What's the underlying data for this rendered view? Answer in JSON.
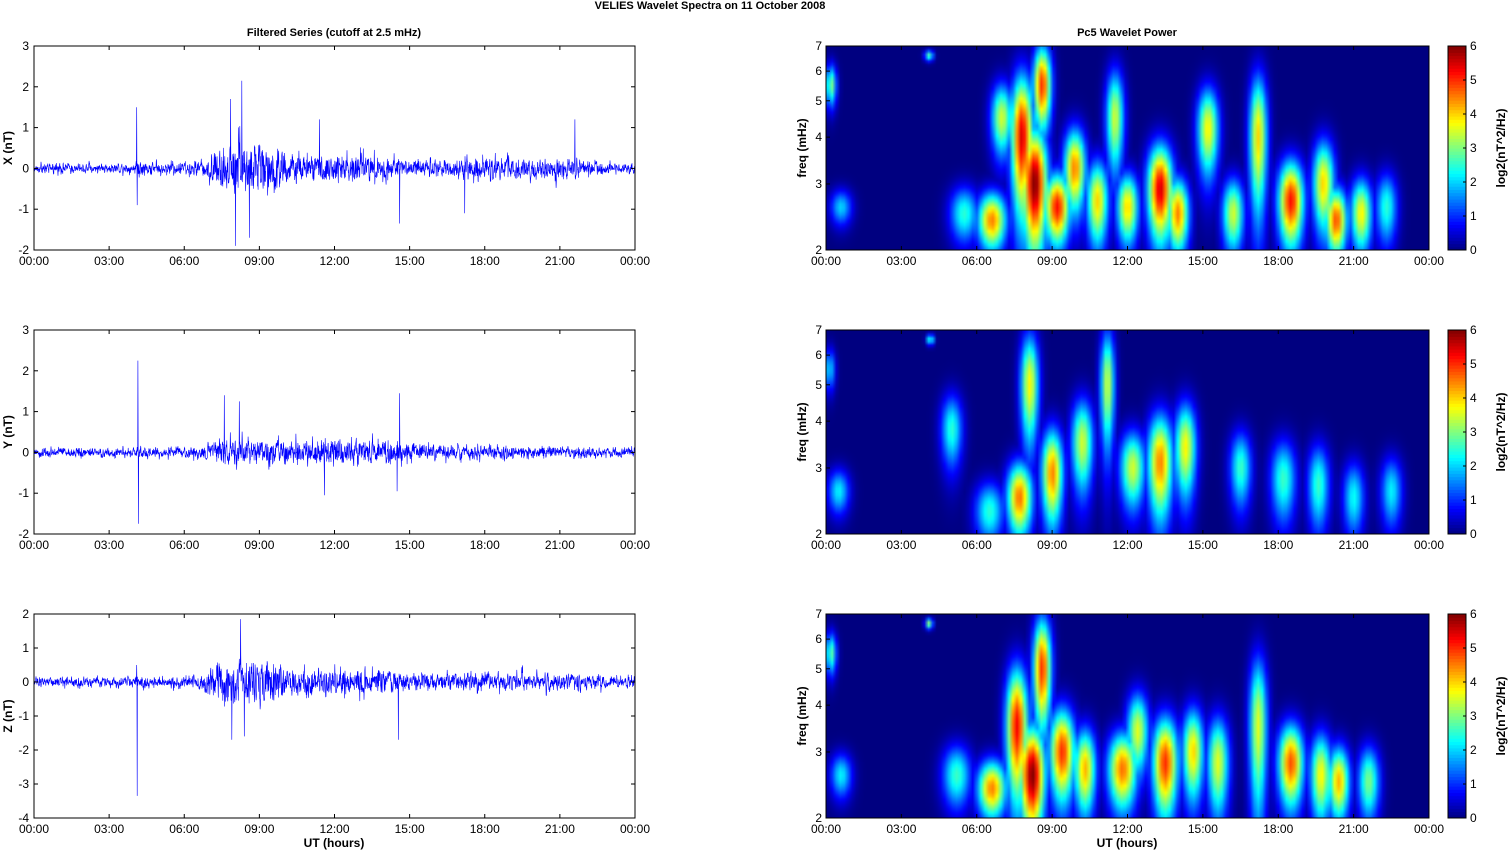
{
  "figure_title": "VELIES Wavelet Spectra on 11 October   2008",
  "left_title": "Filtered Series (cutoff at 2.5 mHz)",
  "right_title": "Pc5 Wavelet Power",
  "xlabel": "UT (hours)",
  "freq_label": "freq (mHz)",
  "colorbar_label": "log2(nT^2/Hz)",
  "colormap": "jet",
  "trace_color": "#0000ff",
  "chart_data": [
    {
      "type": "line",
      "ylabel": "X (nT)",
      "ylim": [
        -2,
        3
      ],
      "yticks": [
        -2,
        -1,
        0,
        1,
        2,
        3
      ],
      "xlim": [
        0,
        24
      ],
      "xticks": [
        "00:00",
        "03:00",
        "06:00",
        "09:00",
        "12:00",
        "15:00",
        "18:00",
        "21:00",
        "00:00"
      ],
      "noise_baseline": 0.08,
      "activity_envelope": [
        {
          "t": 0,
          "a": 0.12
        },
        {
          "t": 4,
          "a": 0.12
        },
        {
          "t": 4.1,
          "a": 0.25
        },
        {
          "t": 4.6,
          "a": 0.15
        },
        {
          "t": 6.6,
          "a": 0.2
        },
        {
          "t": 7,
          "a": 0.45
        },
        {
          "t": 8,
          "a": 0.9
        },
        {
          "t": 9,
          "a": 0.85
        },
        {
          "t": 10,
          "a": 0.5
        },
        {
          "t": 11,
          "a": 0.4
        },
        {
          "t": 12,
          "a": 0.45
        },
        {
          "t": 13,
          "a": 0.4
        },
        {
          "t": 14,
          "a": 0.35
        },
        {
          "t": 15,
          "a": 0.25
        },
        {
          "t": 17,
          "a": 0.25
        },
        {
          "t": 18,
          "a": 0.35
        },
        {
          "t": 19,
          "a": 0.3
        },
        {
          "t": 20,
          "a": 0.3
        },
        {
          "t": 21,
          "a": 0.35
        },
        {
          "t": 22,
          "a": 0.25
        },
        {
          "t": 23,
          "a": 0.15
        },
        {
          "t": 24,
          "a": 0.12
        }
      ],
      "spikes": [
        {
          "t": 4.1,
          "v": 1.5
        },
        {
          "t": 4.12,
          "v": -0.9
        },
        {
          "t": 8.3,
          "v": 2.15
        },
        {
          "t": 8.05,
          "v": -1.9
        },
        {
          "t": 7.85,
          "v": 1.7
        },
        {
          "t": 8.6,
          "v": -1.7
        },
        {
          "t": 11.4,
          "v": 1.2
        },
        {
          "t": 14.6,
          "v": -1.35
        },
        {
          "t": 21.6,
          "v": 1.2
        },
        {
          "t": 17.2,
          "v": -1.1
        }
      ]
    },
    {
      "type": "line",
      "ylabel": "Y (nT)",
      "ylim": [
        -2,
        3
      ],
      "yticks": [
        -2,
        -1,
        0,
        1,
        2,
        3
      ],
      "xlim": [
        0,
        24
      ],
      "xticks": [
        "00:00",
        "03:00",
        "06:00",
        "09:00",
        "12:00",
        "15:00",
        "18:00",
        "21:00",
        "00:00"
      ],
      "noise_baseline": 0.08,
      "activity_envelope": [
        {
          "t": 0,
          "a": 0.12
        },
        {
          "t": 6,
          "a": 0.13
        },
        {
          "t": 7,
          "a": 0.25
        },
        {
          "t": 8,
          "a": 0.45
        },
        {
          "t": 9,
          "a": 0.4
        },
        {
          "t": 10,
          "a": 0.35
        },
        {
          "t": 11,
          "a": 0.35
        },
        {
          "t": 12,
          "a": 0.45
        },
        {
          "t": 13,
          "a": 0.35
        },
        {
          "t": 14,
          "a": 0.35
        },
        {
          "t": 15,
          "a": 0.25
        },
        {
          "t": 17,
          "a": 0.2
        },
        {
          "t": 18,
          "a": 0.2
        },
        {
          "t": 21,
          "a": 0.15
        },
        {
          "t": 24,
          "a": 0.12
        }
      ],
      "spikes": [
        {
          "t": 4.15,
          "v": 2.25
        },
        {
          "t": 4.17,
          "v": -1.75
        },
        {
          "t": 7.6,
          "v": 1.4
        },
        {
          "t": 8.2,
          "v": 1.25
        },
        {
          "t": 11.6,
          "v": -1.05
        },
        {
          "t": 14.6,
          "v": 1.45
        },
        {
          "t": 14.5,
          "v": -0.95
        }
      ]
    },
    {
      "type": "line",
      "ylabel": "Z (nT)",
      "ylim": [
        -4,
        2
      ],
      "yticks": [
        -4,
        -3,
        -2,
        -1,
        0,
        1,
        2
      ],
      "xlim": [
        0,
        24
      ],
      "xticks": [
        "00:00",
        "03:00",
        "06:00",
        "09:00",
        "12:00",
        "15:00",
        "18:00",
        "21:00",
        "00:00"
      ],
      "noise_baseline": 0.1,
      "activity_envelope": [
        {
          "t": 0,
          "a": 0.15
        },
        {
          "t": 4,
          "a": 0.15
        },
        {
          "t": 4.1,
          "a": 0.3
        },
        {
          "t": 4.5,
          "a": 0.15
        },
        {
          "t": 6.6,
          "a": 0.25
        },
        {
          "t": 7,
          "a": 0.5
        },
        {
          "t": 8,
          "a": 0.95
        },
        {
          "t": 9,
          "a": 0.8
        },
        {
          "t": 10,
          "a": 0.5
        },
        {
          "t": 11,
          "a": 0.5
        },
        {
          "t": 12,
          "a": 0.5
        },
        {
          "t": 13,
          "a": 0.5
        },
        {
          "t": 14,
          "a": 0.4
        },
        {
          "t": 15,
          "a": 0.3
        },
        {
          "t": 17,
          "a": 0.3
        },
        {
          "t": 18,
          "a": 0.35
        },
        {
          "t": 19,
          "a": 0.3
        },
        {
          "t": 20,
          "a": 0.3
        },
        {
          "t": 21,
          "a": 0.3
        },
        {
          "t": 22,
          "a": 0.25
        },
        {
          "t": 23,
          "a": 0.2
        },
        {
          "t": 24,
          "a": 0.15
        }
      ],
      "spikes": [
        {
          "t": 4.1,
          "v": 0.5
        },
        {
          "t": 4.12,
          "v": -3.35
        },
        {
          "t": 8.25,
          "v": 1.85
        },
        {
          "t": 7.9,
          "v": -1.7
        },
        {
          "t": 8.4,
          "v": -1.6
        },
        {
          "t": 14.55,
          "v": -1.7
        }
      ]
    },
    {
      "type": "heatmap",
      "ylabel": "freq (mHz)",
      "yscale": "log",
      "ylim": [
        2,
        7
      ],
      "yticks": [
        2,
        3,
        4,
        5,
        6,
        7
      ],
      "xlim": [
        0,
        24
      ],
      "xticks": [
        "00:00",
        "03:00",
        "06:00",
        "09:00",
        "12:00",
        "15:00",
        "18:00",
        "21:00",
        "00:00"
      ],
      "colorbar": {
        "label": "log2(nT^2/Hz)",
        "range": [
          0,
          6
        ],
        "ticks": [
          0,
          1,
          2,
          3,
          4,
          5,
          6
        ]
      },
      "blobs": [
        {
          "t": 0.2,
          "f": 5.5,
          "p": 3.0,
          "wt": 0.15,
          "wf": 0.5
        },
        {
          "t": 0.6,
          "f": 2.6,
          "p": 2.0,
          "wt": 0.3,
          "wf": 0.2
        },
        {
          "t": 4.1,
          "f": 6.6,
          "p": 2.8,
          "wt": 0.12,
          "wf": 0.15
        },
        {
          "t": 5.5,
          "f": 2.5,
          "p": 2.5,
          "wt": 0.4,
          "wf": 0.3
        },
        {
          "t": 6.6,
          "f": 2.4,
          "p": 4.5,
          "wt": 0.4,
          "wf": 0.3
        },
        {
          "t": 7.0,
          "f": 4.5,
          "p": 3.5,
          "wt": 0.3,
          "wf": 0.7
        },
        {
          "t": 7.8,
          "f": 4.0,
          "p": 5.5,
          "wt": 0.3,
          "wf": 1.2
        },
        {
          "t": 8.3,
          "f": 3.0,
          "p": 6.0,
          "wt": 0.35,
          "wf": 0.8
        },
        {
          "t": 8.6,
          "f": 5.5,
          "p": 5.0,
          "wt": 0.25,
          "wf": 1.0
        },
        {
          "t": 9.2,
          "f": 2.6,
          "p": 5.2,
          "wt": 0.35,
          "wf": 0.4
        },
        {
          "t": 9.9,
          "f": 3.3,
          "p": 4.5,
          "wt": 0.3,
          "wf": 0.6
        },
        {
          "t": 10.8,
          "f": 2.7,
          "p": 4.0,
          "wt": 0.3,
          "wf": 0.5
        },
        {
          "t": 11.5,
          "f": 4.5,
          "p": 3.5,
          "wt": 0.25,
          "wf": 1.0
        },
        {
          "t": 12.0,
          "f": 2.6,
          "p": 4.0,
          "wt": 0.3,
          "wf": 0.4
        },
        {
          "t": 13.3,
          "f": 2.9,
          "p": 5.5,
          "wt": 0.35,
          "wf": 0.6
        },
        {
          "t": 14.0,
          "f": 2.5,
          "p": 4.5,
          "wt": 0.3,
          "wf": 0.4
        },
        {
          "t": 15.2,
          "f": 4.2,
          "p": 3.8,
          "wt": 0.3,
          "wf": 0.8
        },
        {
          "t": 16.2,
          "f": 2.5,
          "p": 3.5,
          "wt": 0.3,
          "wf": 0.4
        },
        {
          "t": 17.2,
          "f": 4.0,
          "p": 4.0,
          "wt": 0.25,
          "wf": 1.2
        },
        {
          "t": 18.5,
          "f": 2.7,
          "p": 5.2,
          "wt": 0.35,
          "wf": 0.5
        },
        {
          "t": 19.8,
          "f": 3.0,
          "p": 4.0,
          "wt": 0.3,
          "wf": 0.6
        },
        {
          "t": 20.3,
          "f": 2.4,
          "p": 4.8,
          "wt": 0.3,
          "wf": 0.35
        },
        {
          "t": 21.3,
          "f": 2.5,
          "p": 3.8,
          "wt": 0.3,
          "wf": 0.4
        },
        {
          "t": 22.3,
          "f": 2.6,
          "p": 2.5,
          "wt": 0.3,
          "wf": 0.4
        }
      ]
    },
    {
      "type": "heatmap",
      "ylabel": "freq (mHz)",
      "yscale": "log",
      "ylim": [
        2,
        7
      ],
      "yticks": [
        2,
        3,
        4,
        5,
        6,
        7
      ],
      "xlim": [
        0,
        24
      ],
      "xticks": [
        "00:00",
        "03:00",
        "06:00",
        "09:00",
        "12:00",
        "15:00",
        "18:00",
        "21:00",
        "00:00"
      ],
      "colorbar": {
        "label": "log2(nT^2/Hz)",
        "range": [
          0,
          6
        ],
        "ticks": [
          0,
          1,
          2,
          3,
          4,
          5,
          6
        ]
      },
      "blobs": [
        {
          "t": 0.5,
          "f": 2.6,
          "p": 2.2,
          "wt": 0.3,
          "wf": 0.25
        },
        {
          "t": 0.15,
          "f": 5.5,
          "p": 2.0,
          "wt": 0.15,
          "wf": 0.5
        },
        {
          "t": 4.15,
          "f": 6.6,
          "p": 2.8,
          "wt": 0.1,
          "wf": 0.15
        },
        {
          "t": 5.0,
          "f": 3.8,
          "p": 2.5,
          "wt": 0.3,
          "wf": 0.6
        },
        {
          "t": 6.5,
          "f": 2.3,
          "p": 2.5,
          "wt": 0.4,
          "wf": 0.3
        },
        {
          "t": 7.7,
          "f": 2.5,
          "p": 4.6,
          "wt": 0.35,
          "wf": 0.4
        },
        {
          "t": 8.1,
          "f": 5.0,
          "p": 3.8,
          "wt": 0.25,
          "wf": 1.2
        },
        {
          "t": 9.0,
          "f": 2.9,
          "p": 4.5,
          "wt": 0.3,
          "wf": 0.6
        },
        {
          "t": 10.2,
          "f": 3.5,
          "p": 3.5,
          "wt": 0.3,
          "wf": 0.7
        },
        {
          "t": 11.2,
          "f": 5.0,
          "p": 3.5,
          "wt": 0.2,
          "wf": 1.3
        },
        {
          "t": 12.2,
          "f": 3.0,
          "p": 3.5,
          "wt": 0.35,
          "wf": 0.5
        },
        {
          "t": 13.3,
          "f": 3.1,
          "p": 4.5,
          "wt": 0.35,
          "wf": 0.7
        },
        {
          "t": 14.3,
          "f": 3.4,
          "p": 3.8,
          "wt": 0.3,
          "wf": 0.7
        },
        {
          "t": 16.5,
          "f": 3.0,
          "p": 2.6,
          "wt": 0.3,
          "wf": 0.5
        },
        {
          "t": 18.2,
          "f": 2.8,
          "p": 2.6,
          "wt": 0.35,
          "wf": 0.5
        },
        {
          "t": 19.6,
          "f": 2.7,
          "p": 2.6,
          "wt": 0.3,
          "wf": 0.5
        },
        {
          "t": 21.0,
          "f": 2.5,
          "p": 2.3,
          "wt": 0.3,
          "wf": 0.4
        },
        {
          "t": 22.5,
          "f": 2.6,
          "p": 2.2,
          "wt": 0.3,
          "wf": 0.4
        }
      ]
    },
    {
      "type": "heatmap",
      "ylabel": "freq (mHz)",
      "yscale": "log",
      "ylim": [
        2,
        7
      ],
      "yticks": [
        2,
        3,
        4,
        5,
        6,
        7
      ],
      "xlim": [
        0,
        24
      ],
      "xticks": [
        "00:00",
        "03:00",
        "06:00",
        "09:00",
        "12:00",
        "15:00",
        "18:00",
        "21:00",
        "00:00"
      ],
      "colorbar": {
        "label": "log2(nT^2/Hz)",
        "range": [
          0,
          6
        ],
        "ticks": [
          0,
          1,
          2,
          3,
          4,
          5,
          6
        ]
      },
      "blobs": [
        {
          "t": 0.2,
          "f": 5.5,
          "p": 2.8,
          "wt": 0.15,
          "wf": 0.5
        },
        {
          "t": 0.6,
          "f": 2.6,
          "p": 2.2,
          "wt": 0.3,
          "wf": 0.25
        },
        {
          "t": 4.1,
          "f": 6.6,
          "p": 3.2,
          "wt": 0.1,
          "wf": 0.15
        },
        {
          "t": 5.2,
          "f": 2.6,
          "p": 2.6,
          "wt": 0.4,
          "wf": 0.35
        },
        {
          "t": 6.6,
          "f": 2.4,
          "p": 4.5,
          "wt": 0.4,
          "wf": 0.3
        },
        {
          "t": 7.6,
          "f": 3.5,
          "p": 5.3,
          "wt": 0.3,
          "wf": 1.0
        },
        {
          "t": 8.2,
          "f": 2.6,
          "p": 6.0,
          "wt": 0.35,
          "wf": 0.6
        },
        {
          "t": 8.6,
          "f": 5.0,
          "p": 5.0,
          "wt": 0.25,
          "wf": 1.2
        },
        {
          "t": 9.4,
          "f": 3.0,
          "p": 5.0,
          "wt": 0.35,
          "wf": 0.6
        },
        {
          "t": 10.3,
          "f": 2.7,
          "p": 4.2,
          "wt": 0.3,
          "wf": 0.5
        },
        {
          "t": 11.8,
          "f": 2.7,
          "p": 4.6,
          "wt": 0.4,
          "wf": 0.45
        },
        {
          "t": 12.4,
          "f": 3.4,
          "p": 3.6,
          "wt": 0.3,
          "wf": 0.6
        },
        {
          "t": 13.5,
          "f": 2.8,
          "p": 5.0,
          "wt": 0.35,
          "wf": 0.6
        },
        {
          "t": 14.6,
          "f": 3.0,
          "p": 4.0,
          "wt": 0.3,
          "wf": 0.6
        },
        {
          "t": 15.6,
          "f": 2.8,
          "p": 3.6,
          "wt": 0.3,
          "wf": 0.6
        },
        {
          "t": 17.2,
          "f": 3.5,
          "p": 3.6,
          "wt": 0.25,
          "wf": 1.2
        },
        {
          "t": 18.5,
          "f": 2.8,
          "p": 4.8,
          "wt": 0.35,
          "wf": 0.5
        },
        {
          "t": 19.7,
          "f": 2.6,
          "p": 3.8,
          "wt": 0.3,
          "wf": 0.5
        },
        {
          "t": 20.4,
          "f": 2.5,
          "p": 4.2,
          "wt": 0.3,
          "wf": 0.4
        },
        {
          "t": 21.6,
          "f": 2.5,
          "p": 3.0,
          "wt": 0.3,
          "wf": 0.4
        }
      ]
    }
  ]
}
